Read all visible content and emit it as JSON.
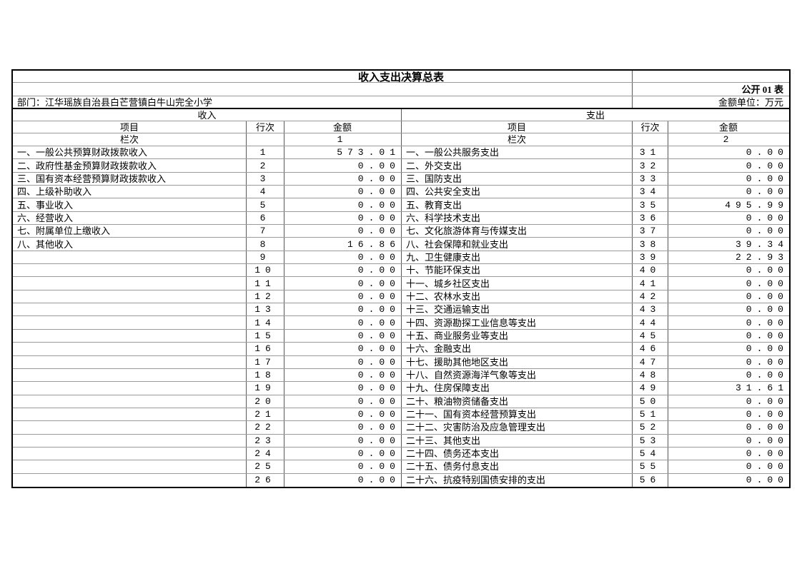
{
  "table": {
    "title": "收入支出决算总表",
    "doc_label": "公开 01 表",
    "department": "部门：江华瑶族自治县白芒营镇白牛山完全小学",
    "unit_label": "金额单位：万元",
    "income": {
      "section_title": "收入",
      "col_item": "项目",
      "col_line": "行次",
      "col_amount": "金额",
      "lanci_label": "栏次",
      "lanci_value": "1",
      "rows": [
        {
          "item": "一、一般公共预算财政拨款收入",
          "line": "1",
          "amount": "573.01"
        },
        {
          "item": "二、政府性基金预算财政拨款收入",
          "line": "2",
          "amount": "0.00"
        },
        {
          "item": "三、国有资本经营预算财政拨款收入",
          "line": "3",
          "amount": "0.00"
        },
        {
          "item": "四、上级补助收入",
          "line": "4",
          "amount": "0.00"
        },
        {
          "item": "五、事业收入",
          "line": "5",
          "amount": "0.00"
        },
        {
          "item": "六、经营收入",
          "line": "6",
          "amount": "0.00"
        },
        {
          "item": "七、附属单位上缴收入",
          "line": "7",
          "amount": "0.00"
        },
        {
          "item": "八、其他收入",
          "line": "8",
          "amount": "16.86"
        },
        {
          "item": "",
          "line": "9",
          "amount": "0.00"
        },
        {
          "item": "",
          "line": "10",
          "amount": "0.00"
        },
        {
          "item": "",
          "line": "11",
          "amount": "0.00"
        },
        {
          "item": "",
          "line": "12",
          "amount": "0.00"
        },
        {
          "item": "",
          "line": "13",
          "amount": "0.00"
        },
        {
          "item": "",
          "line": "14",
          "amount": "0.00"
        },
        {
          "item": "",
          "line": "15",
          "amount": "0.00"
        },
        {
          "item": "",
          "line": "16",
          "amount": "0.00"
        },
        {
          "item": "",
          "line": "17",
          "amount": "0.00"
        },
        {
          "item": "",
          "line": "18",
          "amount": "0.00"
        },
        {
          "item": "",
          "line": "19",
          "amount": "0.00"
        },
        {
          "item": "",
          "line": "20",
          "amount": "0.00"
        },
        {
          "item": "",
          "line": "21",
          "amount": "0.00"
        },
        {
          "item": "",
          "line": "22",
          "amount": "0.00"
        },
        {
          "item": "",
          "line": "23",
          "amount": "0.00"
        },
        {
          "item": "",
          "line": "24",
          "amount": "0.00"
        },
        {
          "item": "",
          "line": "25",
          "amount": "0.00"
        },
        {
          "item": "",
          "line": "26",
          "amount": "0.00"
        }
      ]
    },
    "expense": {
      "section_title": "支出",
      "col_item": "项目",
      "col_line": "行次",
      "col_amount": "金额",
      "lanci_label": "栏次",
      "lanci_value": "2",
      "rows": [
        {
          "item": "一、一般公共服务支出",
          "line": "31",
          "amount": "0.00"
        },
        {
          "item": "二、外交支出",
          "line": "32",
          "amount": "0.00"
        },
        {
          "item": "三、国防支出",
          "line": "33",
          "amount": "0.00"
        },
        {
          "item": "四、公共安全支出",
          "line": "34",
          "amount": "0.00"
        },
        {
          "item": "五、教育支出",
          "line": "35",
          "amount": "495.99"
        },
        {
          "item": "六、科学技术支出",
          "line": "36",
          "amount": "0.00"
        },
        {
          "item": "七、文化旅游体育与传媒支出",
          "line": "37",
          "amount": "0.00"
        },
        {
          "item": "八、社会保障和就业支出",
          "line": "38",
          "amount": "39.34"
        },
        {
          "item": "九、卫生健康支出",
          "line": "39",
          "amount": "22.93"
        },
        {
          "item": "十、节能环保支出",
          "line": "40",
          "amount": "0.00"
        },
        {
          "item": "十一、城乡社区支出",
          "line": "41",
          "amount": "0.00"
        },
        {
          "item": "十二、农林水支出",
          "line": "42",
          "amount": "0.00"
        },
        {
          "item": "十三、交通运输支出",
          "line": "43",
          "amount": "0.00"
        },
        {
          "item": "十四、资源勘探工业信息等支出",
          "line": "44",
          "amount": "0.00"
        },
        {
          "item": "十五、商业服务业等支出",
          "line": "45",
          "amount": "0.00"
        },
        {
          "item": "十六、金融支出",
          "line": "46",
          "amount": "0.00"
        },
        {
          "item": "十七、援助其他地区支出",
          "line": "47",
          "amount": "0.00"
        },
        {
          "item": "十八、自然资源海洋气象等支出",
          "line": "48",
          "amount": "0.00"
        },
        {
          "item": "十九、住房保障支出",
          "line": "49",
          "amount": "31.61"
        },
        {
          "item": "二十、粮油物资储备支出",
          "line": "50",
          "amount": "0.00"
        },
        {
          "item": "二十一、国有资本经营预算支出",
          "line": "51",
          "amount": "0.00"
        },
        {
          "item": "二十二、灾害防治及应急管理支出",
          "line": "52",
          "amount": "0.00"
        },
        {
          "item": "二十三、其他支出",
          "line": "53",
          "amount": "0.00"
        },
        {
          "item": "二十四、债务还本支出",
          "line": "54",
          "amount": "0.00"
        },
        {
          "item": "二十五、债务付息支出",
          "line": "55",
          "amount": "0.00"
        },
        {
          "item": "二十六、抗疫特别国债安排的支出",
          "line": "56",
          "amount": "0.00"
        }
      ]
    }
  },
  "colors": {
    "outer_border": "#000000",
    "grid_horizontal": "#9a9a9a",
    "grid_vertical": "#595959",
    "background": "#ffffff",
    "text": "#000000"
  }
}
